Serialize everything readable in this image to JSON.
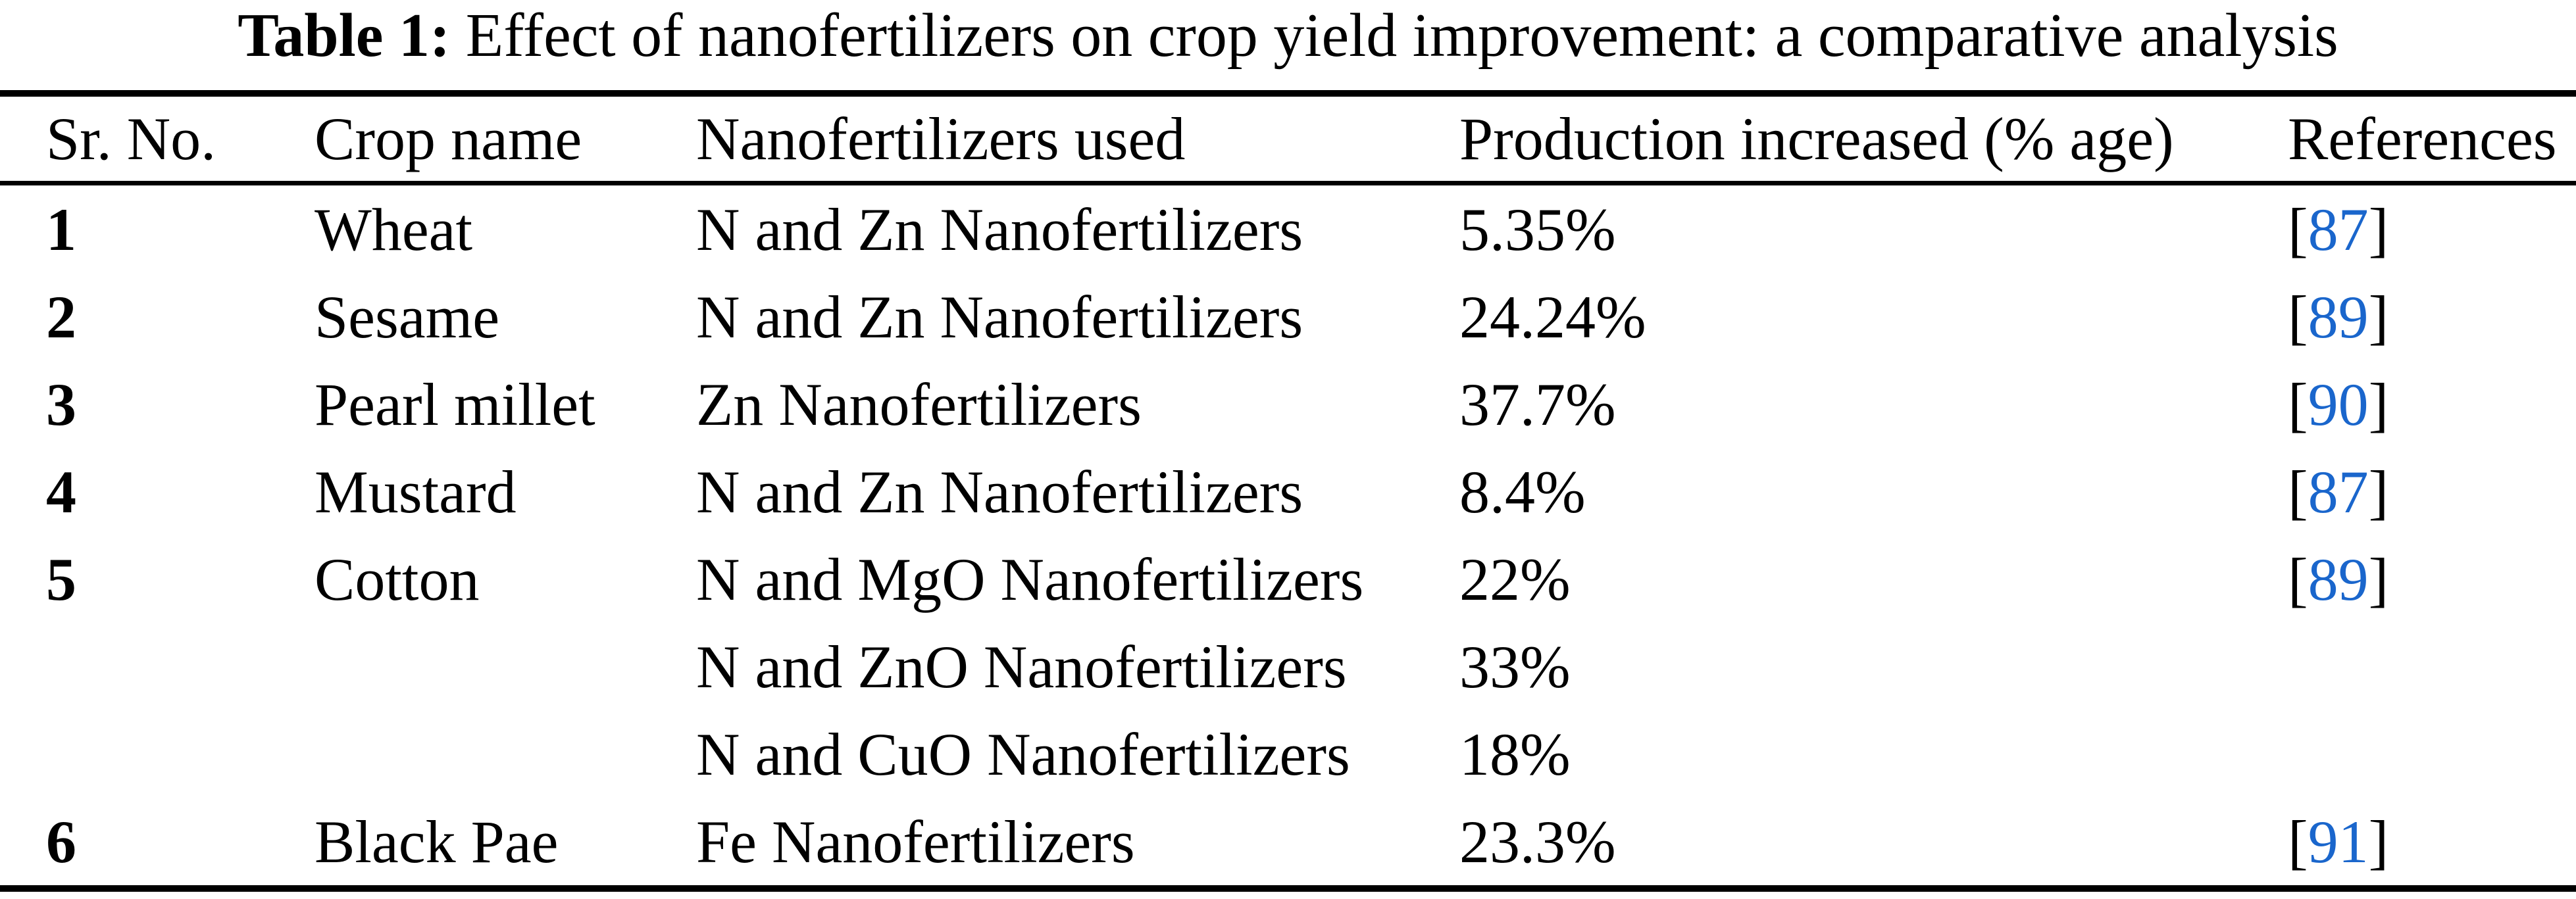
{
  "page": {
    "background": "#FFFFFF",
    "text_color": "#000000",
    "rule_color": "#000000",
    "citation_color": "#1A66CC"
  },
  "caption": {
    "label": "Table 1:",
    "text": " Effect of nanofertilizers on crop yield improvement: a comparative analysis"
  },
  "table": {
    "headers": [
      "Sr. No.",
      "Crop name",
      "Nanofertilizers used",
      "Production increased (% age)",
      "References"
    ],
    "rows": [
      {
        "sr": "1",
        "crop": "Wheat",
        "nano": "N and Zn Nanofertilizers",
        "prod": "5.35%",
        "ref_open": "[",
        "ref": "87",
        "ref_close": "]"
      },
      {
        "sr": "2",
        "crop": "Sesame",
        "nano": "N and Zn Nanofertilizers",
        "prod": "24.24%",
        "ref_open": "[",
        "ref": "89",
        "ref_close": "]"
      },
      {
        "sr": "3",
        "crop": "Pearl millet",
        "nano": "Zn Nanofertilizers",
        "prod": "37.7%",
        "ref_open": "[",
        "ref": "90",
        "ref_close": "]"
      },
      {
        "sr": "4",
        "crop": "Mustard",
        "nano": "N and Zn Nanofertilizers",
        "prod": "8.4%",
        "ref_open": "[",
        "ref": "87",
        "ref_close": "]"
      },
      {
        "sr": "5",
        "crop": "Cotton",
        "nano": "N and MgO Nanofertilizers",
        "prod": "22%",
        "ref_open": "[",
        "ref": "89",
        "ref_close": "]"
      },
      {
        "sr": "",
        "crop": "",
        "nano": "N and ZnO Nanofertilizers",
        "prod": "33%",
        "ref_open": "",
        "ref": "",
        "ref_close": ""
      },
      {
        "sr": "",
        "crop": "",
        "nano": "N and CuO Nanofertilizers",
        "prod": "18%",
        "ref_open": "",
        "ref": "",
        "ref_close": ""
      },
      {
        "sr": "6",
        "crop": "Black Pae",
        "nano": "Fe Nanofertilizers",
        "prod": "23.3%",
        "ref_open": "[",
        "ref": "91",
        "ref_close": "]"
      }
    ]
  }
}
